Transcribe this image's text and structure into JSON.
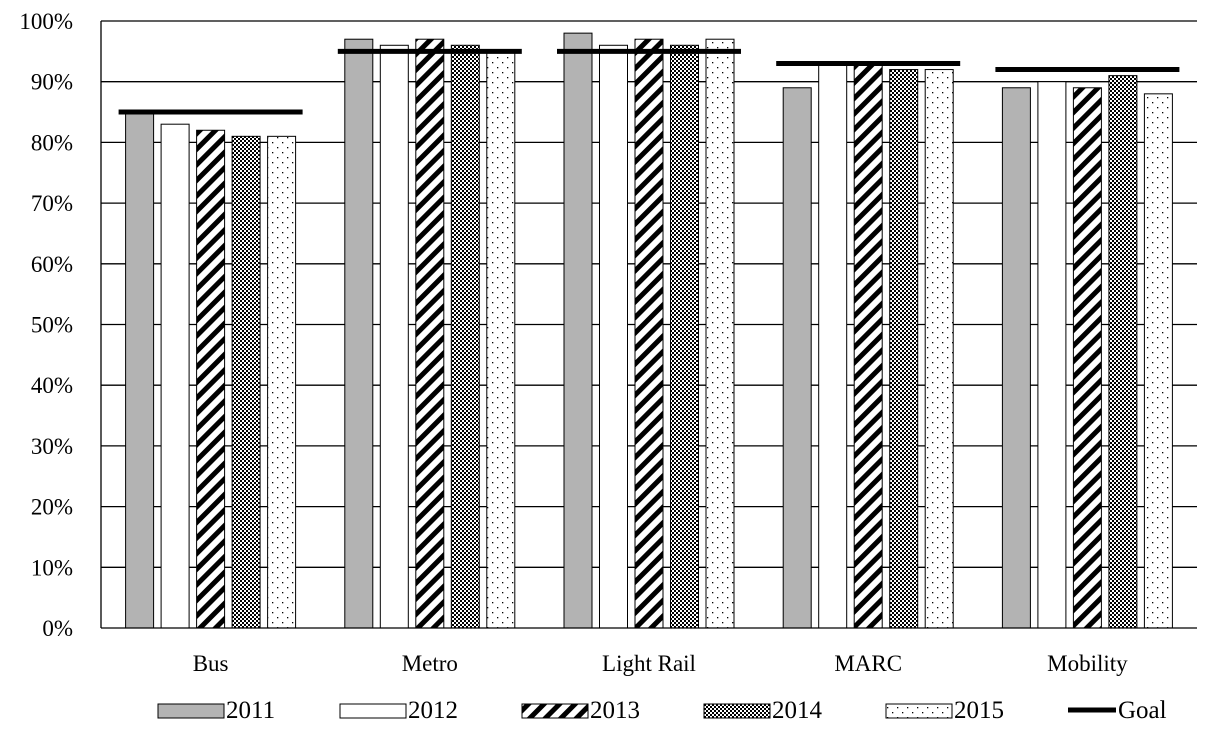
{
  "chart_data": {
    "type": "bar",
    "title": "",
    "xlabel": "",
    "ylabel": "",
    "categories": [
      "Bus",
      "Metro",
      "Light Rail",
      "MARC",
      "Mobility"
    ],
    "ylim": [
      0,
      100
    ],
    "y_ticks": [
      0,
      10,
      20,
      30,
      40,
      50,
      60,
      70,
      80,
      90,
      100
    ],
    "y_tick_labels": [
      "0%",
      "10%",
      "20%",
      "30%",
      "40%",
      "50%",
      "60%",
      "70%",
      "80%",
      "90%",
      "100%"
    ],
    "grid": true,
    "legend_position": "bottom",
    "series": [
      {
        "name": "2011",
        "pattern": "solid-gray",
        "color": "#b3b3b3",
        "values": [
          85,
          97,
          98,
          89,
          89
        ]
      },
      {
        "name": "2012",
        "pattern": "solid-white",
        "color": "#ffffff",
        "values": [
          83,
          96,
          96,
          93,
          90
        ]
      },
      {
        "name": "2013",
        "pattern": "diagonal-stripes",
        "color": "#000000",
        "values": [
          82,
          97,
          97,
          93,
          89
        ]
      },
      {
        "name": "2014",
        "pattern": "checker",
        "color": "#555555",
        "values": [
          81,
          96,
          96,
          92,
          91
        ]
      },
      {
        "name": "2015",
        "pattern": "dots",
        "color": "#888888",
        "values": [
          81,
          95,
          97,
          92,
          88
        ]
      }
    ],
    "goal": {
      "name": "Goal",
      "color": "#000000",
      "values": [
        85,
        95,
        95,
        93,
        92
      ]
    }
  }
}
